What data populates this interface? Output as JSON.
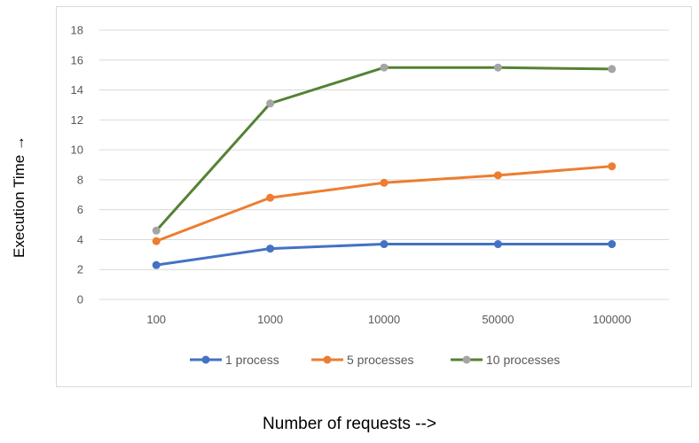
{
  "chart_data": {
    "type": "line",
    "categories": [
      "100",
      "1000",
      "10000",
      "50000",
      "100000"
    ],
    "series": [
      {
        "name": "1 process",
        "color": "#4472c4",
        "values": [
          2.3,
          3.4,
          3.7,
          3.7,
          3.7
        ]
      },
      {
        "name": "5 processes",
        "color": "#ed7d31",
        "values": [
          3.9,
          6.8,
          7.8,
          8.3,
          8.9
        ]
      },
      {
        "name": "10 processes",
        "color": "#548235",
        "marker_color": "#a5a5a5",
        "values": [
          4.6,
          13.1,
          15.5,
          15.5,
          15.4
        ]
      }
    ],
    "xlabel": "Number of requests -->",
    "ylabel": "Execution Time →",
    "ylim": [
      0,
      18
    ],
    "yticks": [
      "0",
      "2",
      "4",
      "6",
      "8",
      "10",
      "12",
      "14",
      "16",
      "18"
    ],
    "grid": true,
    "legend_position": "bottom"
  }
}
